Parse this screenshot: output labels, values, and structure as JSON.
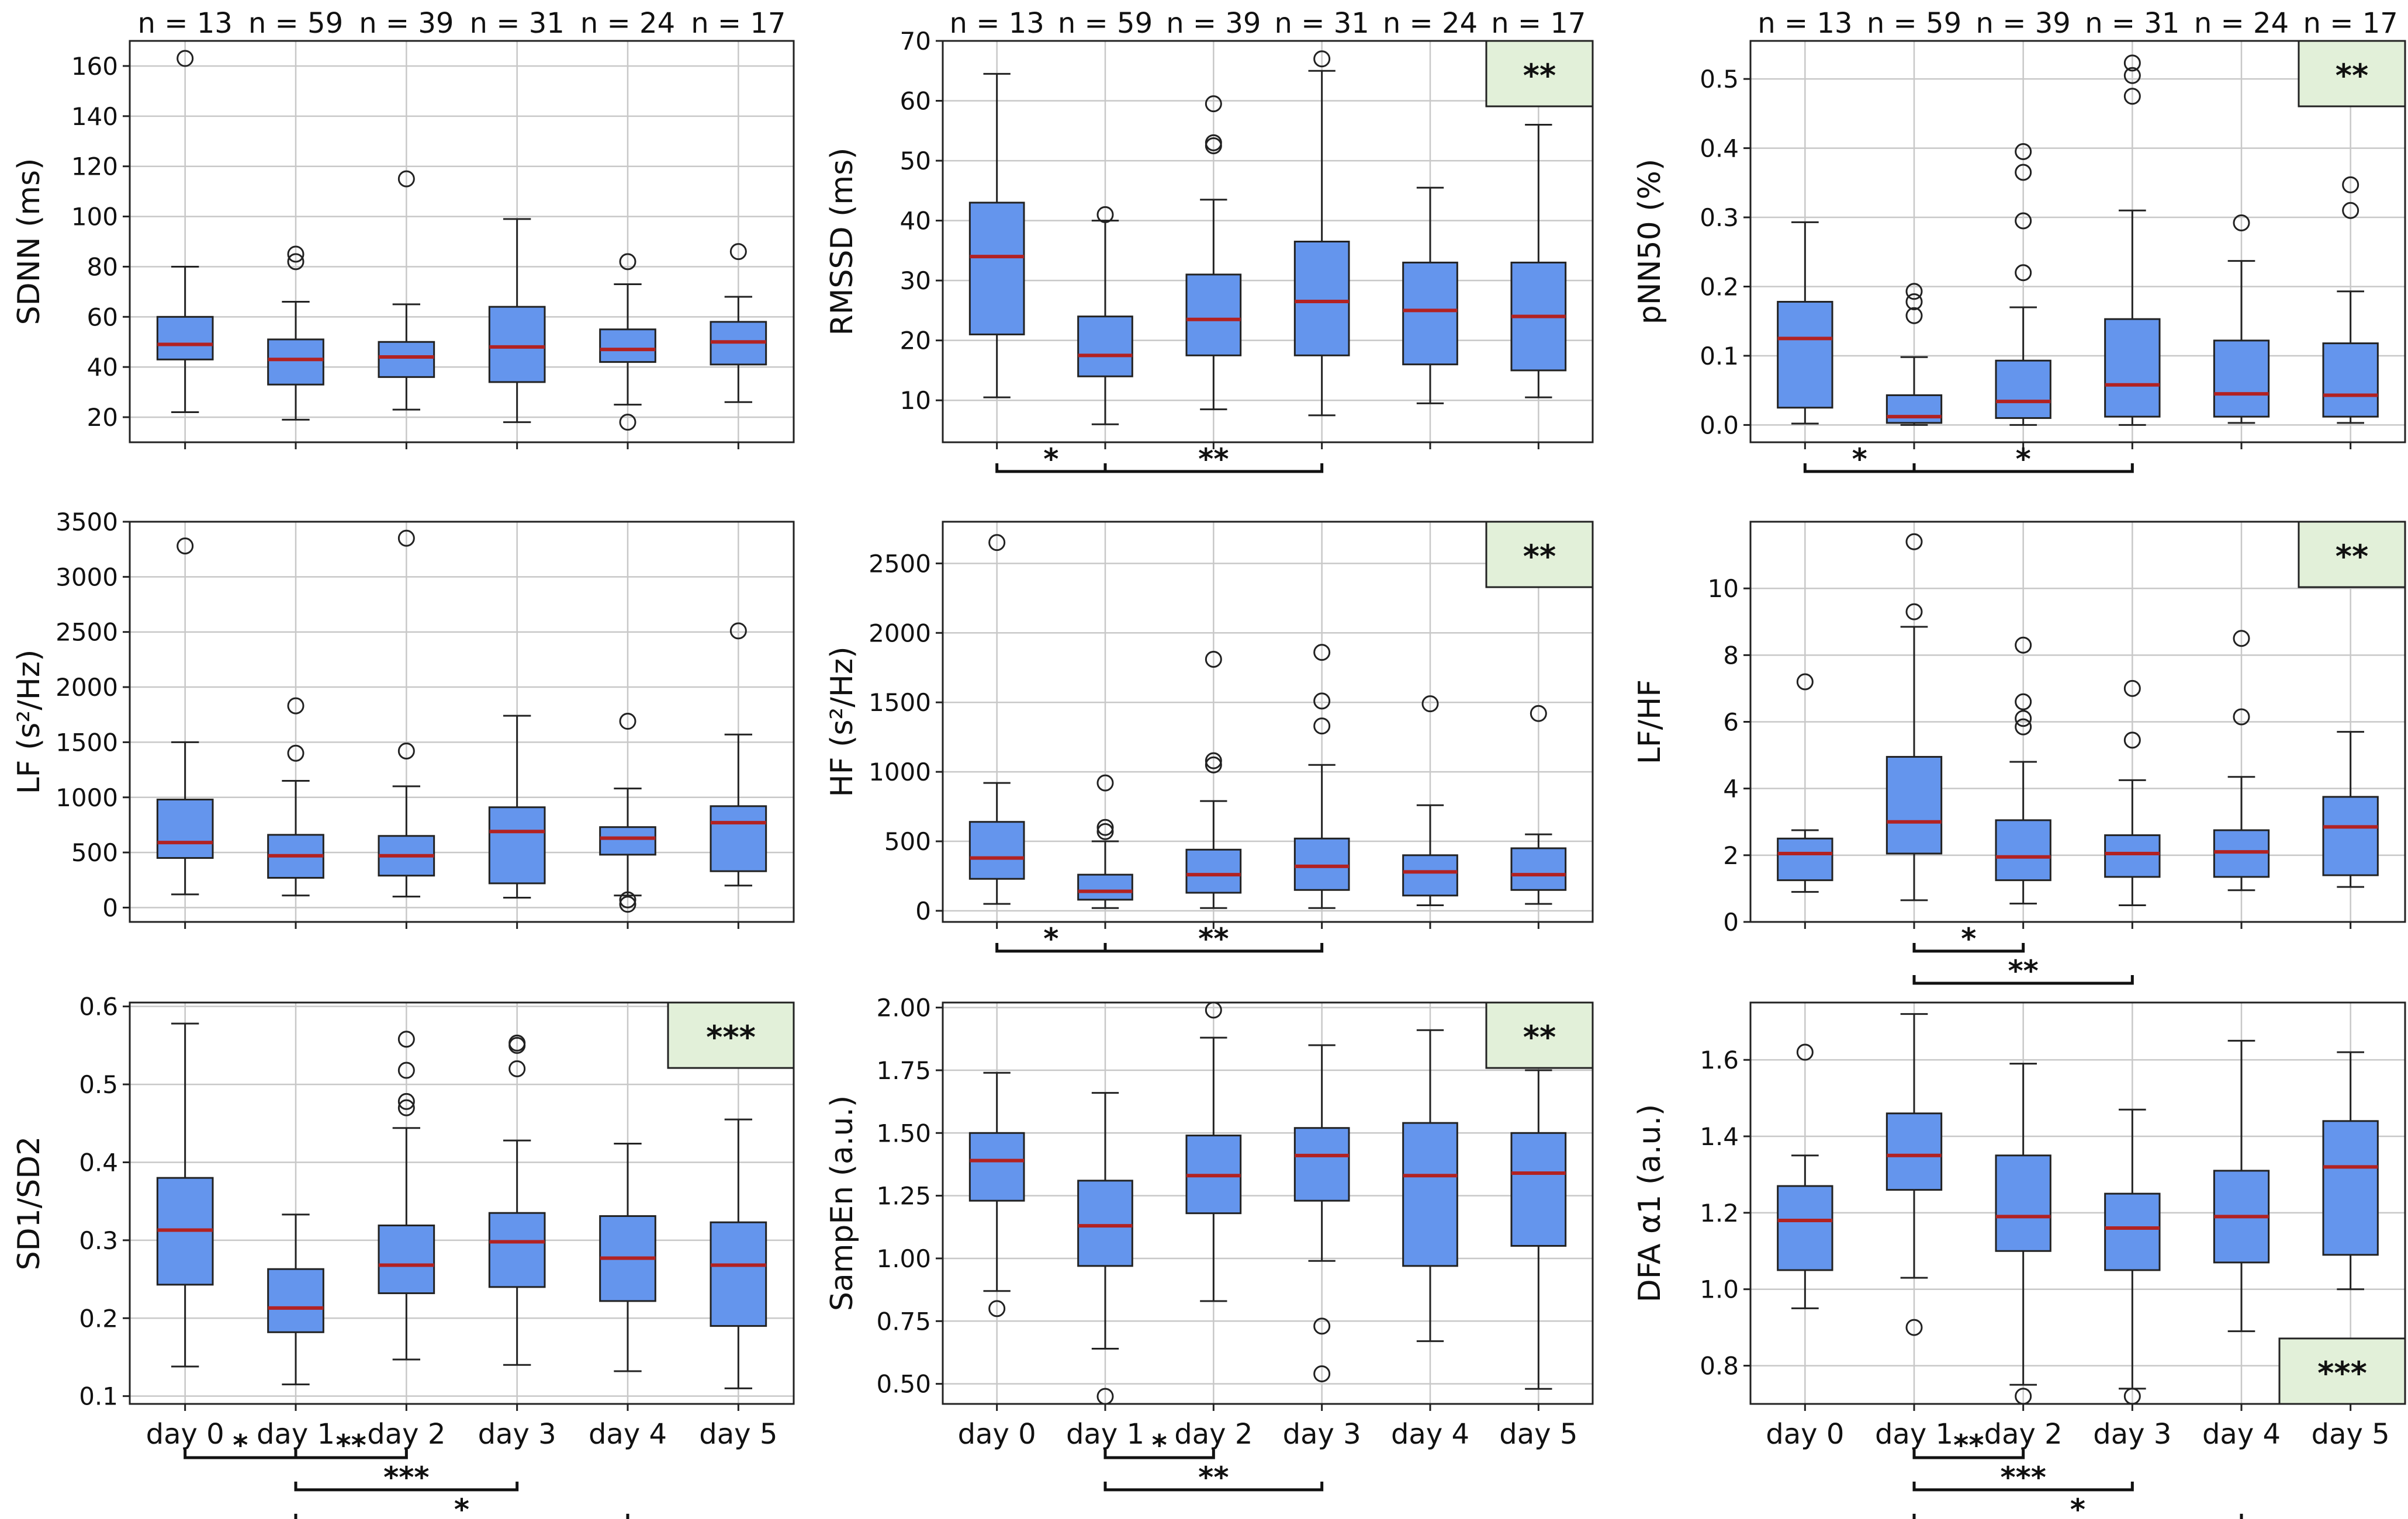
{
  "figure": {
    "days": [
      "day 0",
      "day 1",
      "day 2",
      "day 3",
      "day 4",
      "day 5"
    ],
    "n_labels": [
      "n = 13",
      "n = 59",
      "n = 39",
      "n = 31",
      "n = 24",
      "n = 17"
    ],
    "colors": {
      "box_fill": "#6495ED",
      "median": "#B22222",
      "badge_fill": "#E2F0D9",
      "grid": "#C8C8C8"
    }
  },
  "chart_data": [
    {
      "type": "boxplot",
      "id": "sdnn",
      "ylabel": "SDNN (ms)",
      "ylim": [
        10,
        170
      ],
      "yticks": [
        20,
        40,
        60,
        80,
        100,
        120,
        140,
        160
      ],
      "show_n": true,
      "show_xticks": false,
      "badge": null,
      "boxes": [
        {
          "whislo": 22,
          "q1": 43,
          "med": 49,
          "q3": 60,
          "whishi": 80,
          "fliers": [
            163
          ]
        },
        {
          "whislo": 19,
          "q1": 33,
          "med": 43,
          "q3": 51,
          "whishi": 66,
          "fliers": [
            82,
            85
          ]
        },
        {
          "whislo": 23,
          "q1": 36,
          "med": 44,
          "q3": 50,
          "whishi": 65,
          "fliers": [
            115
          ]
        },
        {
          "whislo": 18,
          "q1": 34,
          "med": 48,
          "q3": 64,
          "whishi": 99,
          "fliers": []
        },
        {
          "whislo": 25,
          "q1": 42,
          "med": 47,
          "q3": 55,
          "whishi": 73,
          "fliers": [
            82,
            18
          ]
        },
        {
          "whislo": 26,
          "q1": 41,
          "med": 50,
          "q3": 58,
          "whishi": 68,
          "fliers": [
            86
          ]
        }
      ],
      "brackets": []
    },
    {
      "type": "boxplot",
      "id": "rmssd",
      "ylabel": "RMSSD (ms)",
      "ylim": [
        3,
        70
      ],
      "yticks": [
        10,
        20,
        30,
        40,
        50,
        60,
        70
      ],
      "show_n": true,
      "show_xticks": false,
      "badge": "**",
      "boxes": [
        {
          "whislo": 10.5,
          "q1": 21,
          "med": 34,
          "q3": 43,
          "whishi": 64.5,
          "fliers": []
        },
        {
          "whislo": 6,
          "q1": 14,
          "med": 17.5,
          "q3": 24,
          "whishi": 40,
          "fliers": [
            41
          ]
        },
        {
          "whislo": 8.5,
          "q1": 17.5,
          "med": 23.5,
          "q3": 31,
          "whishi": 43.5,
          "fliers": [
            52.5,
            53,
            59.5
          ]
        },
        {
          "whislo": 7.5,
          "q1": 17.5,
          "med": 26.5,
          "q3": 36.5,
          "whishi": 65,
          "fliers": [
            67
          ]
        },
        {
          "whislo": 9.5,
          "q1": 16,
          "med": 25,
          "q3": 33,
          "whishi": 45.5,
          "fliers": []
        },
        {
          "whislo": 10.5,
          "q1": 15,
          "med": 24,
          "q3": 33,
          "whishi": 56,
          "fliers": []
        }
      ],
      "brackets": [
        {
          "from": 0,
          "to": 1,
          "level": 0,
          "label": "*"
        },
        {
          "from": 1,
          "to": 3,
          "level": 0,
          "label": "**"
        }
      ]
    },
    {
      "type": "boxplot",
      "id": "pnn50",
      "ylabel": "pNN50 (%)",
      "ylim": [
        -0.025,
        0.555
      ],
      "yticks": [
        0.0,
        0.1,
        0.2,
        0.3,
        0.4,
        0.5
      ],
      "tick_decimals": 1,
      "show_n": true,
      "show_xticks": false,
      "badge": "**",
      "boxes": [
        {
          "whislo": 0.002,
          "q1": 0.025,
          "med": 0.125,
          "q3": 0.178,
          "whishi": 0.293,
          "fliers": []
        },
        {
          "whislo": 0.0,
          "q1": 0.003,
          "med": 0.012,
          "q3": 0.043,
          "whishi": 0.098,
          "fliers": [
            0.158,
            0.178,
            0.193
          ]
        },
        {
          "whislo": 0.0,
          "q1": 0.01,
          "med": 0.034,
          "q3": 0.093,
          "whishi": 0.17,
          "fliers": [
            0.22,
            0.295,
            0.365,
            0.395
          ]
        },
        {
          "whislo": 0.0,
          "q1": 0.012,
          "med": 0.058,
          "q3": 0.153,
          "whishi": 0.31,
          "fliers": [
            0.475,
            0.505,
            0.523
          ]
        },
        {
          "whislo": 0.003,
          "q1": 0.012,
          "med": 0.045,
          "q3": 0.122,
          "whishi": 0.237,
          "fliers": [
            0.292
          ]
        },
        {
          "whislo": 0.003,
          "q1": 0.012,
          "med": 0.043,
          "q3": 0.118,
          "whishi": 0.193,
          "fliers": [
            0.31,
            0.347
          ]
        }
      ],
      "brackets": [
        {
          "from": 0,
          "to": 1,
          "level": 0,
          "label": "*"
        },
        {
          "from": 1,
          "to": 3,
          "level": 0,
          "label": "*"
        }
      ]
    },
    {
      "type": "boxplot",
      "id": "lf",
      "ylabel": "LF (s²/Hz)",
      "ylim": [
        -130,
        3500
      ],
      "yticks": [
        0,
        500,
        1000,
        1500,
        2000,
        2500,
        3000,
        3500
      ],
      "show_n": false,
      "show_xticks": false,
      "badge": null,
      "boxes": [
        {
          "whislo": 120,
          "q1": 450,
          "med": 590,
          "q3": 980,
          "whishi": 1500,
          "fliers": [
            3280
          ]
        },
        {
          "whislo": 110,
          "q1": 270,
          "med": 470,
          "q3": 660,
          "whishi": 1150,
          "fliers": [
            1400,
            1830
          ]
        },
        {
          "whislo": 100,
          "q1": 290,
          "med": 470,
          "q3": 650,
          "whishi": 1100,
          "fliers": [
            1420,
            3350
          ]
        },
        {
          "whislo": 90,
          "q1": 220,
          "med": 690,
          "q3": 910,
          "whishi": 1740,
          "fliers": []
        },
        {
          "whislo": 110,
          "q1": 480,
          "med": 630,
          "q3": 730,
          "whishi": 1080,
          "fliers": [
            1690,
            30,
            70
          ]
        },
        {
          "whislo": 200,
          "q1": 330,
          "med": 770,
          "q3": 920,
          "whishi": 1570,
          "fliers": [
            2510
          ]
        }
      ],
      "brackets": []
    },
    {
      "type": "boxplot",
      "id": "hf",
      "ylabel": "HF (s²/Hz)",
      "ylim": [
        -80,
        2800
      ],
      "yticks": [
        0,
        500,
        1000,
        1500,
        2000,
        2500
      ],
      "show_n": false,
      "show_xticks": false,
      "badge": "**",
      "boxes": [
        {
          "whislo": 50,
          "q1": 230,
          "med": 380,
          "q3": 640,
          "whishi": 920,
          "fliers": [
            2650
          ]
        },
        {
          "whislo": 20,
          "q1": 80,
          "med": 140,
          "q3": 260,
          "whishi": 500,
          "fliers": [
            570,
            600,
            920
          ]
        },
        {
          "whislo": 20,
          "q1": 130,
          "med": 260,
          "q3": 440,
          "whishi": 790,
          "fliers": [
            1050,
            1080,
            1810
          ]
        },
        {
          "whislo": 20,
          "q1": 150,
          "med": 320,
          "q3": 520,
          "whishi": 1050,
          "fliers": [
            1330,
            1510,
            1860
          ]
        },
        {
          "whislo": 40,
          "q1": 110,
          "med": 280,
          "q3": 400,
          "whishi": 760,
          "fliers": [
            1490
          ]
        },
        {
          "whislo": 50,
          "q1": 150,
          "med": 260,
          "q3": 450,
          "whishi": 550,
          "fliers": [
            1420
          ]
        }
      ],
      "brackets": [
        {
          "from": 0,
          "to": 1,
          "level": 0,
          "label": "*"
        },
        {
          "from": 1,
          "to": 3,
          "level": 0,
          "label": "**"
        }
      ]
    },
    {
      "type": "boxplot",
      "id": "lfhf",
      "ylabel": "LF/HF",
      "ylim": [
        0,
        12
      ],
      "yticks": [
        0,
        2,
        4,
        6,
        8,
        10
      ],
      "show_n": false,
      "show_xticks": false,
      "badge": "**",
      "boxes": [
        {
          "whislo": 0.9,
          "q1": 1.25,
          "med": 2.05,
          "q3": 2.5,
          "whishi": 2.75,
          "fliers": [
            7.2
          ]
        },
        {
          "whislo": 0.65,
          "q1": 2.05,
          "med": 3.0,
          "q3": 4.95,
          "whishi": 8.85,
          "fliers": [
            9.3,
            11.4
          ]
        },
        {
          "whislo": 0.55,
          "q1": 1.25,
          "med": 1.95,
          "q3": 3.05,
          "whishi": 4.8,
          "fliers": [
            5.85,
            6.1,
            6.6,
            8.3
          ]
        },
        {
          "whislo": 0.5,
          "q1": 1.35,
          "med": 2.05,
          "q3": 2.6,
          "whishi": 4.25,
          "fliers": [
            5.45,
            7.0
          ]
        },
        {
          "whislo": 0.95,
          "q1": 1.35,
          "med": 2.1,
          "q3": 2.75,
          "whishi": 4.35,
          "fliers": [
            6.15,
            8.5
          ]
        },
        {
          "whislo": 1.05,
          "q1": 1.4,
          "med": 2.85,
          "q3": 3.75,
          "whishi": 5.7,
          "fliers": []
        }
      ],
      "brackets": [
        {
          "from": 1,
          "to": 2,
          "level": 0,
          "label": "*"
        },
        {
          "from": 1,
          "to": 3,
          "level": 1,
          "label": "**"
        }
      ]
    },
    {
      "type": "boxplot",
      "id": "sd1sd2",
      "ylabel": "SD1/SD2",
      "ylim": [
        0.09,
        0.605
      ],
      "yticks": [
        0.1,
        0.2,
        0.3,
        0.4,
        0.5,
        0.6
      ],
      "tick_decimals": 1,
      "show_n": false,
      "show_xticks": true,
      "badge": "***",
      "boxes": [
        {
          "whislo": 0.138,
          "q1": 0.243,
          "med": 0.313,
          "q3": 0.38,
          "whishi": 0.578,
          "fliers": []
        },
        {
          "whislo": 0.115,
          "q1": 0.182,
          "med": 0.213,
          "q3": 0.263,
          "whishi": 0.333,
          "fliers": []
        },
        {
          "whislo": 0.147,
          "q1": 0.232,
          "med": 0.268,
          "q3": 0.319,
          "whishi": 0.444,
          "fliers": [
            0.47,
            0.478,
            0.518,
            0.558
          ]
        },
        {
          "whislo": 0.14,
          "q1": 0.24,
          "med": 0.298,
          "q3": 0.335,
          "whishi": 0.428,
          "fliers": [
            0.52,
            0.55,
            0.553
          ]
        },
        {
          "whislo": 0.132,
          "q1": 0.222,
          "med": 0.277,
          "q3": 0.331,
          "whishi": 0.424,
          "fliers": []
        },
        {
          "whislo": 0.11,
          "q1": 0.19,
          "med": 0.268,
          "q3": 0.323,
          "whishi": 0.455,
          "fliers": []
        }
      ],
      "brackets": [
        {
          "from": 0,
          "to": 1,
          "level": 0,
          "label": "*"
        },
        {
          "from": 1,
          "to": 2,
          "level": 0,
          "label": "**"
        },
        {
          "from": 1,
          "to": 3,
          "level": 1,
          "label": "***"
        },
        {
          "from": 1,
          "to": 4,
          "level": 2,
          "label": "*"
        }
      ]
    },
    {
      "type": "boxplot",
      "id": "sampen",
      "ylabel": "SampEn (a.u.)",
      "ylim": [
        0.42,
        2.02
      ],
      "yticks": [
        0.5,
        0.75,
        1.0,
        1.25,
        1.5,
        1.75,
        2.0
      ],
      "tick_decimals": 2,
      "show_n": false,
      "show_xticks": true,
      "badge": "**",
      "boxes": [
        {
          "whislo": 0.87,
          "q1": 1.23,
          "med": 1.39,
          "q3": 1.5,
          "whishi": 1.74,
          "fliers": [
            0.8
          ]
        },
        {
          "whislo": 0.64,
          "q1": 0.97,
          "med": 1.13,
          "q3": 1.31,
          "whishi": 1.66,
          "fliers": [
            0.45
          ]
        },
        {
          "whislo": 0.83,
          "q1": 1.18,
          "med": 1.33,
          "q3": 1.49,
          "whishi": 1.88,
          "fliers": [
            1.99
          ]
        },
        {
          "whislo": 0.99,
          "q1": 1.23,
          "med": 1.41,
          "q3": 1.52,
          "whishi": 1.85,
          "fliers": [
            0.73,
            0.54
          ]
        },
        {
          "whislo": 0.67,
          "q1": 0.97,
          "med": 1.33,
          "q3": 1.54,
          "whishi": 1.91,
          "fliers": []
        },
        {
          "whislo": 0.48,
          "q1": 1.05,
          "med": 1.34,
          "q3": 1.5,
          "whishi": 1.75,
          "fliers": []
        }
      ],
      "brackets": [
        {
          "from": 1,
          "to": 2,
          "level": 0,
          "label": "*"
        },
        {
          "from": 1,
          "to": 3,
          "level": 1,
          "label": "**"
        }
      ]
    },
    {
      "type": "boxplot",
      "id": "dfa",
      "ylabel": "DFA α1 (a.u.)",
      "ylim": [
        0.7,
        1.75
      ],
      "yticks": [
        0.8,
        1.0,
        1.2,
        1.4,
        1.6
      ],
      "tick_decimals": 1,
      "show_n": false,
      "show_xticks": true,
      "badge": "***",
      "badge_pos": "bottom",
      "boxes": [
        {
          "whislo": 0.95,
          "q1": 1.05,
          "med": 1.18,
          "q3": 1.27,
          "whishi": 1.35,
          "fliers": [
            1.62
          ]
        },
        {
          "whislo": 1.03,
          "q1": 1.26,
          "med": 1.35,
          "q3": 1.46,
          "whishi": 1.72,
          "fliers": [
            0.9
          ]
        },
        {
          "whislo": 0.75,
          "q1": 1.1,
          "med": 1.19,
          "q3": 1.35,
          "whishi": 1.59,
          "fliers": [
            0.72
          ]
        },
        {
          "whislo": 0.74,
          "q1": 1.05,
          "med": 1.16,
          "q3": 1.25,
          "whishi": 1.47,
          "fliers": [
            0.72
          ]
        },
        {
          "whislo": 0.89,
          "q1": 1.07,
          "med": 1.19,
          "q3": 1.31,
          "whishi": 1.65,
          "fliers": []
        },
        {
          "whislo": 1.0,
          "q1": 1.09,
          "med": 1.32,
          "q3": 1.44,
          "whishi": 1.62,
          "fliers": []
        }
      ],
      "brackets": [
        {
          "from": 1,
          "to": 2,
          "level": 0,
          "label": "**"
        },
        {
          "from": 1,
          "to": 3,
          "level": 1,
          "label": "***"
        },
        {
          "from": 1,
          "to": 4,
          "level": 2,
          "label": "*"
        }
      ]
    }
  ]
}
